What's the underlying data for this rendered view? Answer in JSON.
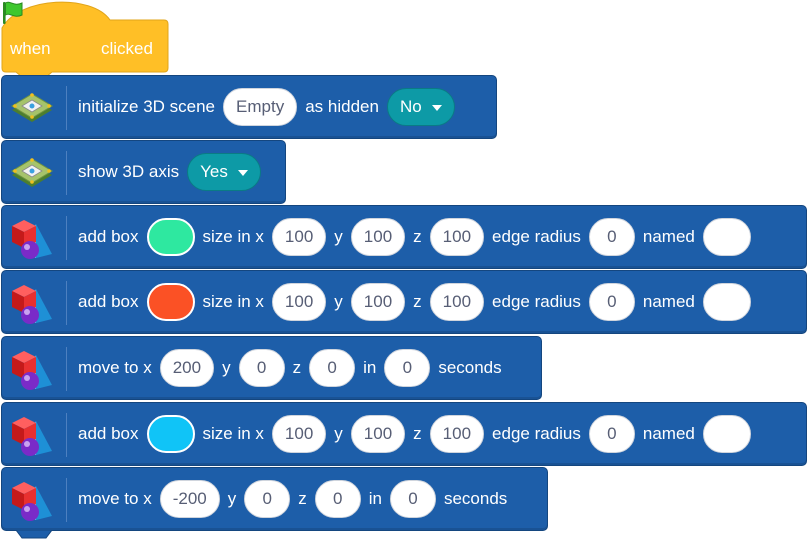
{
  "hat": {
    "when": "when",
    "clicked": "clicked",
    "color": "#ffbf26",
    "flag_color": "#3ec72d"
  },
  "blocks": [
    {
      "text1": "initialize 3D scene",
      "scene_value": "Empty",
      "text2": "as hidden",
      "hidden_value": "No"
    },
    {
      "text1": "show 3D axis",
      "axis_value": "Yes"
    },
    {
      "text1": "add box",
      "color": "#2ee8a0",
      "size_label": "size in x",
      "x": "100",
      "y_label": "y",
      "y": "100",
      "z_label": "z",
      "z": "100",
      "radius_label": "edge radius",
      "radius": "0",
      "named_label": "named",
      "name": ""
    },
    {
      "text1": "add box",
      "color": "#fb5125",
      "size_label": "size in x",
      "x": "100",
      "y_label": "y",
      "y": "100",
      "z_label": "z",
      "z": "100",
      "radius_label": "edge radius",
      "radius": "0",
      "named_label": "named",
      "name": ""
    },
    {
      "text1": "move to x",
      "x": "200",
      "y_label": "y",
      "y": "0",
      "z_label": "z",
      "z": "0",
      "in_label": "in",
      "seconds": "0",
      "seconds_label": "seconds"
    },
    {
      "text1": "add box",
      "color": "#10c4f7",
      "size_label": "size in x",
      "x": "100",
      "y_label": "y",
      "y": "100",
      "z_label": "z",
      "z": "100",
      "radius_label": "edge radius",
      "radius": "0",
      "named_label": "named",
      "name": ""
    },
    {
      "text1": "move to x",
      "x": "-200",
      "y_label": "y",
      "y": "0",
      "z_label": "z",
      "z": "0",
      "in_label": "in",
      "seconds": "0",
      "seconds_label": "seconds"
    }
  ],
  "icons": {
    "scene": "3d-scene-icon",
    "shapes": "3d-shapes-icon"
  },
  "block_color": "#1d5ea9"
}
